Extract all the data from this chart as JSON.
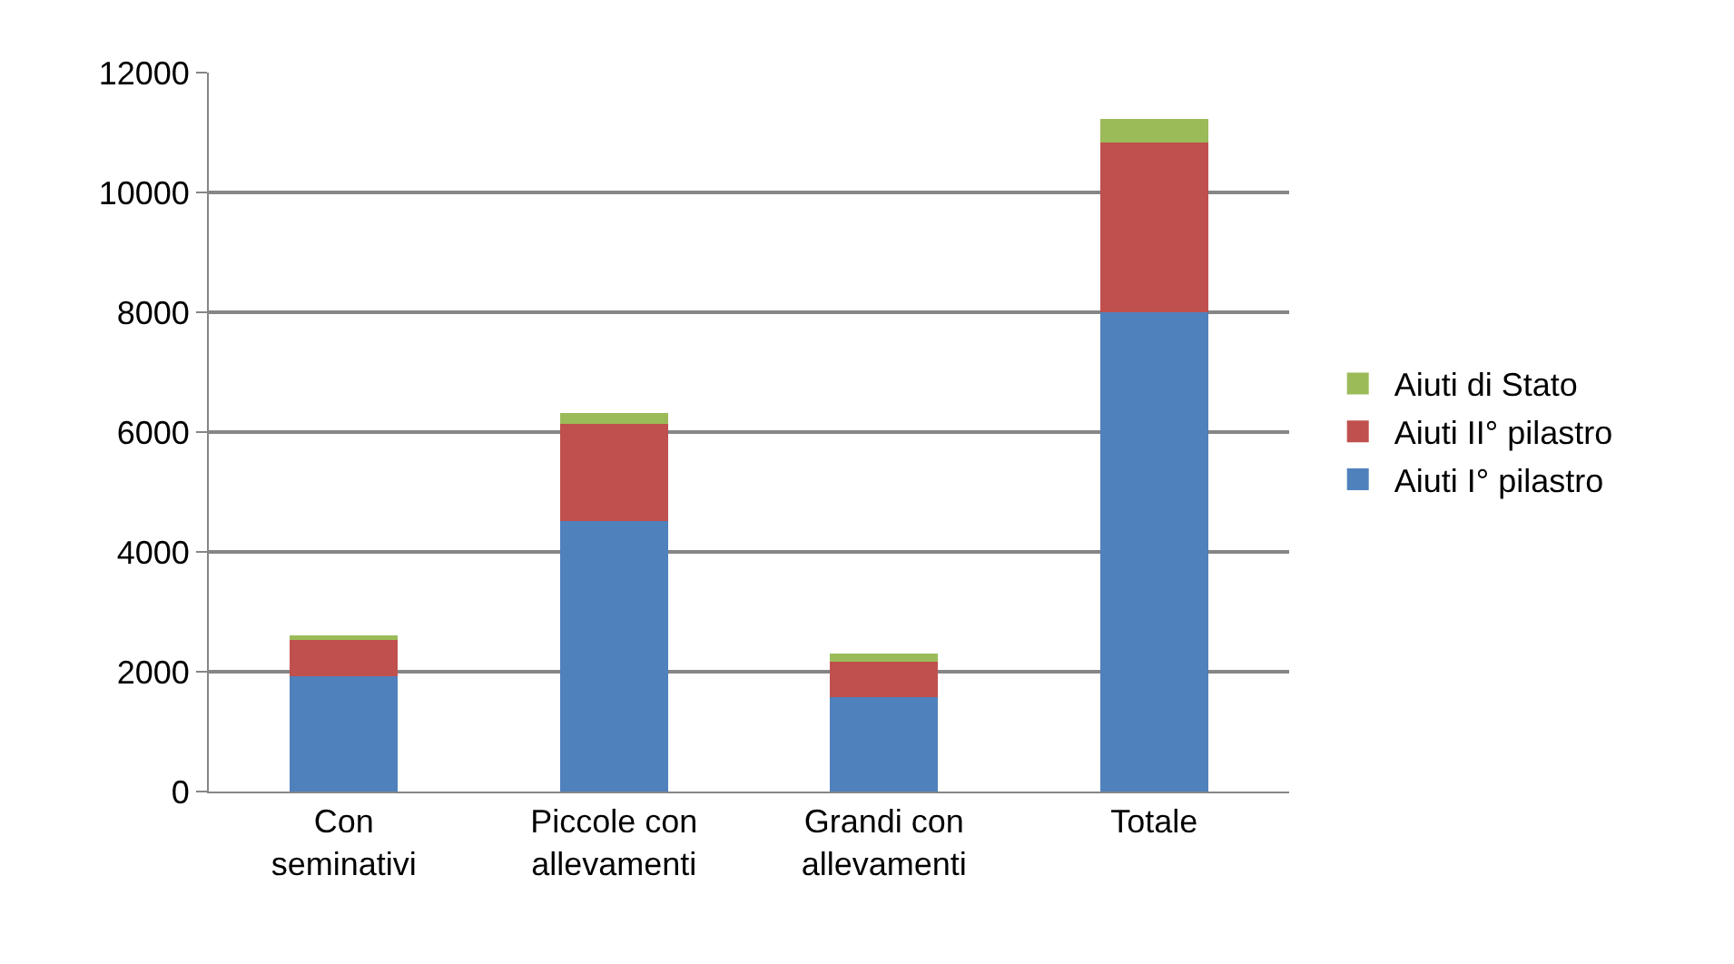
{
  "chart_data": {
    "type": "bar",
    "stacked": true,
    "categories": [
      "Con seminativi",
      "Piccole con allevamenti",
      "Grandi con allevamenti",
      "Totale"
    ],
    "series": [
      {
        "name": "Aiuti I° pilastro",
        "color": "#4f81bd",
        "values": [
          1930,
          4520,
          1570,
          8000
        ]
      },
      {
        "name": "Aiuti II° pilastro",
        "color": "#c0504d",
        "values": [
          600,
          1620,
          600,
          2830
        ]
      },
      {
        "name": "Aiuti di Stato",
        "color": "#9bbb59",
        "values": [
          70,
          180,
          130,
          400
        ]
      }
    ],
    "ylim": [
      0,
      12000
    ],
    "yticks": [
      0,
      2000,
      4000,
      6000,
      8000,
      10000,
      12000
    ],
    "grid": "y",
    "legend": "right"
  }
}
